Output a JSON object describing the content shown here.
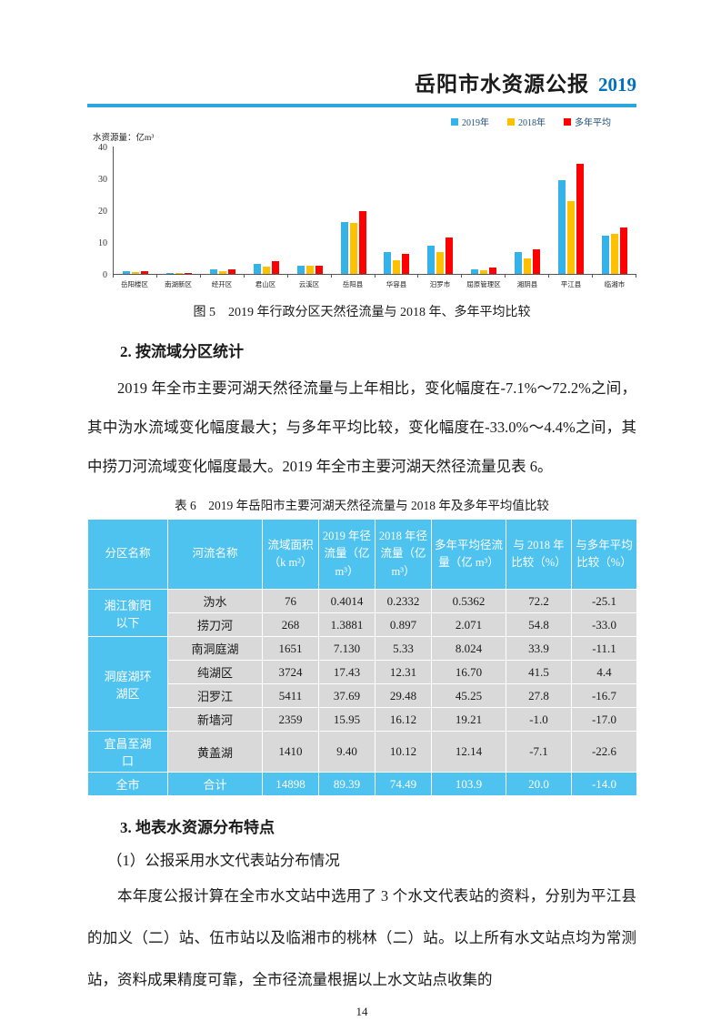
{
  "header": {
    "title": "岳阳市水资源公报",
    "year": "2019"
  },
  "chart": {
    "caption": "图 5　2019 年行政分区天然径流量与 2018 年、多年平均比较"
  },
  "chart_data": {
    "type": "bar",
    "title": "2019 年行政分区天然径流量与 2018 年、多年平均比较",
    "ylabel": "水资源量：亿m³",
    "xlabel": "",
    "ylim": [
      0,
      40
    ],
    "yticks": [
      0,
      10,
      20,
      30,
      40
    ],
    "grid": false,
    "legend_position": "top-right",
    "categories": [
      "岳阳楼区",
      "南湖新区",
      "经开区",
      "君山区",
      "云溪区",
      "岳阳县",
      "华容县",
      "汨罗市",
      "屈原管理区",
      "湘阴县",
      "平江县",
      "临湘市"
    ],
    "series": [
      {
        "name": "2019年",
        "color": "#33B3E7",
        "values": [
          0.8,
          0.2,
          1.5,
          3.2,
          2.6,
          16.4,
          7.0,
          8.9,
          1.5,
          6.8,
          29.4,
          12.0
        ]
      },
      {
        "name": "2018年",
        "color": "#FFC000",
        "values": [
          0.5,
          0.3,
          1.0,
          2.3,
          2.7,
          15.9,
          4.4,
          7.0,
          1.2,
          4.8,
          22.8,
          12.5
        ]
      },
      {
        "name": "多年平均",
        "color": "#FF0000",
        "values": [
          0.8,
          0.2,
          1.4,
          3.9,
          2.6,
          19.8,
          6.2,
          11.3,
          1.9,
          7.8,
          34.5,
          14.7
        ]
      }
    ]
  },
  "section2": {
    "heading": "2. 按流域分区统计",
    "paragraph": "2019 年全市主要河湖天然径流量与上年相比，变化幅度在-7.1%～72.2%之间，其中沩水流域变化幅度最大；与多年平均比较，变化幅度在-33.0%～4.4%之间，其中捞刀河流域变化幅度最大。2019 年全市主要河湖天然径流量见表 6。"
  },
  "table": {
    "caption": "表 6　2019 年岳阳市主要河湖天然径流量与 2018 年及多年平均值比较",
    "columns": [
      "分区名称",
      "河流名称",
      "流域面积（k m²）",
      "2019 年径流量（亿 m³）",
      "2018 年径流量（亿 m³）",
      "多年平均径流量（亿 m³）",
      "与 2018 年比较（%）",
      "与多年平均比较（%）"
    ],
    "groups": [
      {
        "name": "湘江衡阳以下",
        "rows": [
          [
            "沩水",
            "76",
            "0.4014",
            "0.2332",
            "0.5362",
            "72.2",
            "-25.1"
          ],
          [
            "捞刀河",
            "268",
            "1.3881",
            "0.897",
            "2.071",
            "54.8",
            "-33.0"
          ]
        ]
      },
      {
        "name": "洞庭湖环湖区",
        "rows": [
          [
            "南洞庭湖",
            "1651",
            "7.130",
            "5.33",
            "8.024",
            "33.9",
            "-11.1"
          ],
          [
            "纯湖区",
            "3724",
            "17.43",
            "12.31",
            "16.70",
            "41.5",
            "4.4"
          ],
          [
            "汨罗江",
            "5411",
            "37.69",
            "29.48",
            "45.25",
            "27.8",
            "-16.7"
          ],
          [
            "新墙河",
            "2359",
            "15.95",
            "16.12",
            "19.21",
            "-1.0",
            "-17.0"
          ]
        ]
      },
      {
        "name": "宜昌至湖口",
        "rows": [
          [
            "黄盖湖",
            "1410",
            "9.40",
            "10.12",
            "12.14",
            "-7.1",
            "-22.6"
          ]
        ]
      }
    ],
    "total_row": {
      "name": "全市",
      "cells": [
        "合计",
        "14898",
        "89.39",
        "74.49",
        "103.9",
        "20.0",
        "-14.0"
      ]
    }
  },
  "section3": {
    "heading": "3. 地表水资源分布特点",
    "subheading": "（1）公报采用水文代表站分布情况",
    "paragraph": "本年度公报计算在全市水文站中选用了 3 个水文代表站的资料，分别为平江县的加义（二）站、伍市站以及临湘市的桃林（二）站。以上所有水文站点均为常测站，资料成果精度可靠，全市径流量根据以上水文站点收集的"
  },
  "footer": {
    "page_number": "14"
  }
}
